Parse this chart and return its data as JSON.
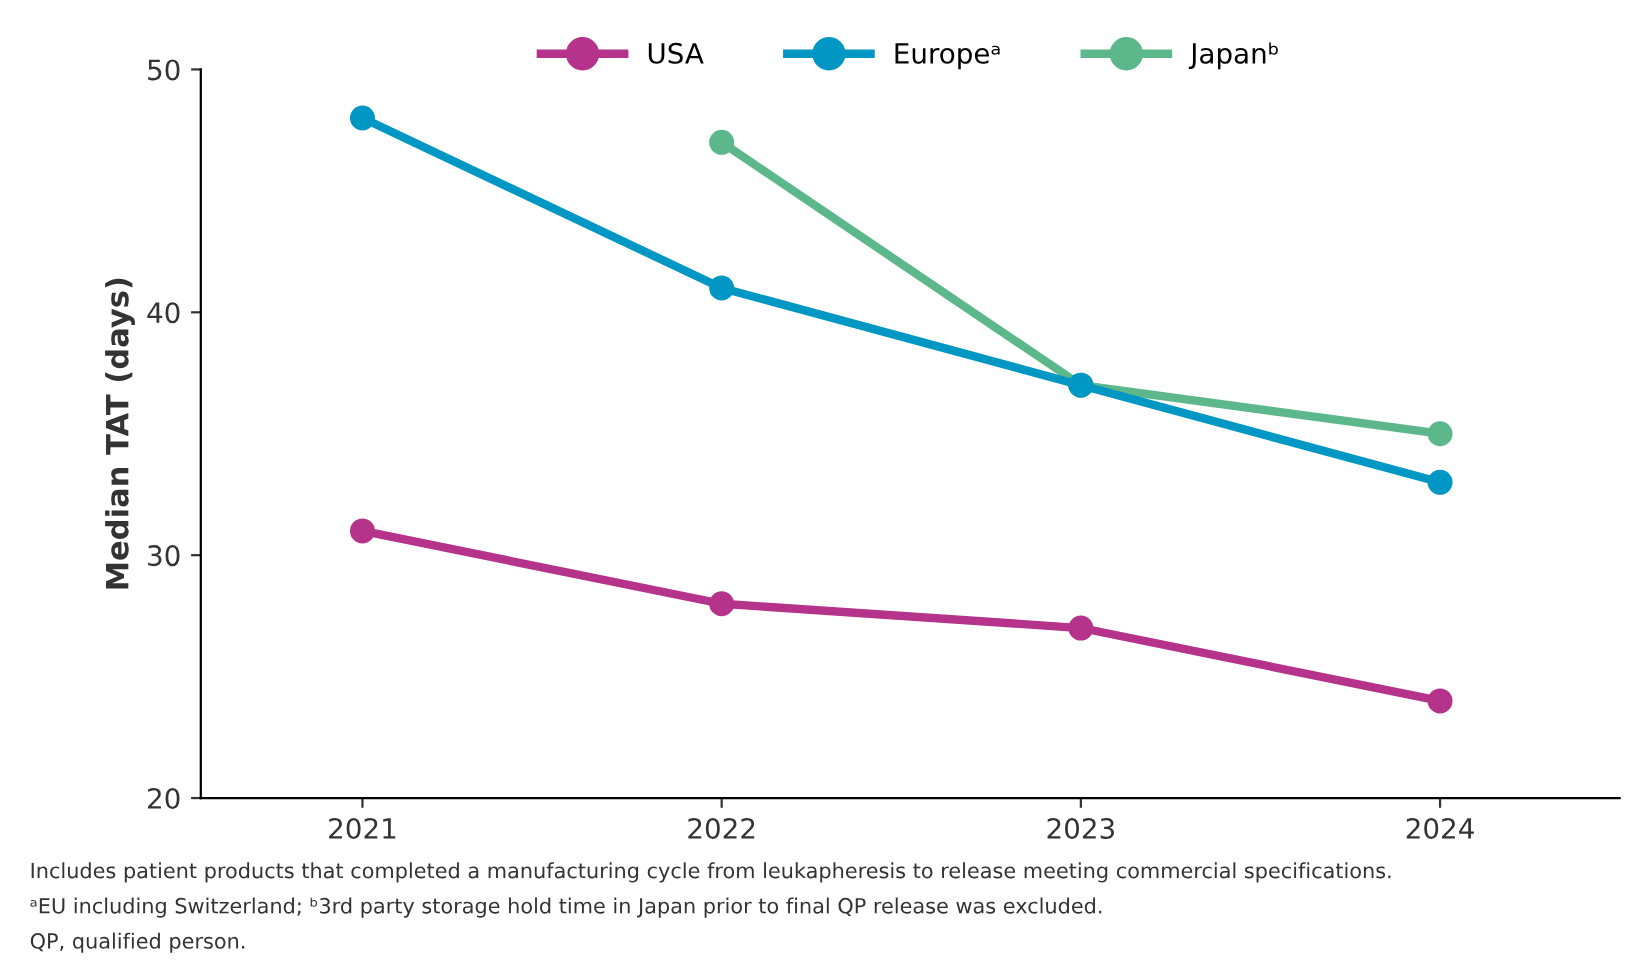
{
  "chart_data": {
    "type": "line",
    "ylabel": "Median TAT (days)",
    "x": [
      2021,
      2022,
      2023,
      2024
    ],
    "xlim": [
      2020.55,
      2024.5
    ],
    "xticks": [
      2021,
      2022,
      2023,
      2024
    ],
    "ylim": [
      20,
      50
    ],
    "yticks": [
      20,
      30,
      40,
      50
    ],
    "series": [
      {
        "name": "USA",
        "color": "#b5338a",
        "values": [
          31,
          28,
          27,
          24
        ]
      },
      {
        "name": "Europeᵃ",
        "color": "#0097c4",
        "values": [
          48,
          41,
          37,
          33
        ]
      },
      {
        "name": "Japanᵇ",
        "color": "#5cb88a",
        "values": [
          null,
          47,
          37,
          35
        ]
      }
    ],
    "marker": "circle",
    "line_style": "solid",
    "grid": false,
    "legend": "top",
    "annotations": [
      "Includes patient products that completed a manufacturing cycle from leukapheresis to release meeting commercial specifications.",
      "ᵃEU including Switzerland; ᵇ3rd party storage hold time in Japan prior to final QP release was excluded.",
      "QP, qualified person."
    ]
  }
}
